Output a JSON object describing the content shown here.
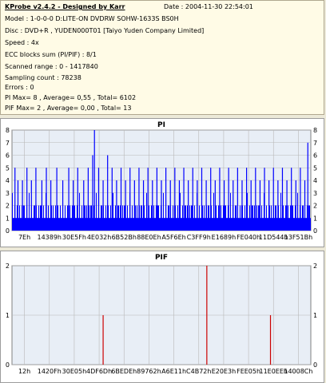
{
  "header": {
    "title": "KProbe v2.4.2 - Designed by Karr",
    "date": "Date : 2004-11-30 22:54:01",
    "lines": [
      "Model : 1-0-0-0 D:LITE-ON DVDRW SOHW-1633S BS0H",
      "Disc : DVD+R , YUDEN000T01 [Taiyo Yuden Company Limited]",
      "Speed : 4x",
      "ECC blocks sum (PI/PIF) : 8/1",
      "Scanned range : 0 - 1417840",
      "Sampling count : 78238",
      "Errors : 0",
      "PI Max= 8 , Average= 0,55 , Total= 6102",
      "PIF Max= 2 , Average= 0,00 , Total= 13"
    ]
  },
  "colors": {
    "pi_bar": "#0000ff",
    "pif_bar": "#cc0000",
    "plot_bg": "#e8eef6",
    "grid": "#b8b8b8"
  },
  "chart_data": [
    {
      "type": "bar",
      "title": "PI",
      "ylim": [
        0,
        8
      ],
      "yticks": [
        0,
        1,
        2,
        3,
        4,
        5,
        6,
        7,
        8
      ],
      "xticks": [
        "7Eh",
        "14389h",
        "30E5Fh",
        "4E032h",
        "6B52Bh",
        "88E0Eh",
        "A5F6Eh",
        "C3FF9h",
        "E1689h",
        "FE040h",
        "11D544h",
        "13F51Bh"
      ],
      "grid": true,
      "spikes": [
        {
          "x": 0.01,
          "v": 5
        },
        {
          "x": 0.02,
          "v": 4
        },
        {
          "x": 0.035,
          "v": 4
        },
        {
          "x": 0.05,
          "v": 5
        },
        {
          "x": 0.065,
          "v": 4
        },
        {
          "x": 0.08,
          "v": 5
        },
        {
          "x": 0.1,
          "v": 4
        },
        {
          "x": 0.115,
          "v": 5
        },
        {
          "x": 0.13,
          "v": 4
        },
        {
          "x": 0.15,
          "v": 5
        },
        {
          "x": 0.17,
          "v": 4
        },
        {
          "x": 0.19,
          "v": 5
        },
        {
          "x": 0.205,
          "v": 4
        },
        {
          "x": 0.22,
          "v": 5
        },
        {
          "x": 0.24,
          "v": 4
        },
        {
          "x": 0.255,
          "v": 5
        },
        {
          "x": 0.27,
          "v": 6
        },
        {
          "x": 0.276,
          "v": 8
        },
        {
          "x": 0.29,
          "v": 5
        },
        {
          "x": 0.305,
          "v": 4
        },
        {
          "x": 0.32,
          "v": 6
        },
        {
          "x": 0.335,
          "v": 5
        },
        {
          "x": 0.35,
          "v": 4
        },
        {
          "x": 0.365,
          "v": 5
        },
        {
          "x": 0.38,
          "v": 4
        },
        {
          "x": 0.395,
          "v": 5
        },
        {
          "x": 0.41,
          "v": 4
        },
        {
          "x": 0.425,
          "v": 5
        },
        {
          "x": 0.44,
          "v": 4
        },
        {
          "x": 0.455,
          "v": 5
        },
        {
          "x": 0.47,
          "v": 4
        },
        {
          "x": 0.485,
          "v": 5
        },
        {
          "x": 0.5,
          "v": 4
        },
        {
          "x": 0.515,
          "v": 5
        },
        {
          "x": 0.53,
          "v": 4
        },
        {
          "x": 0.545,
          "v": 5
        },
        {
          "x": 0.56,
          "v": 4
        },
        {
          "x": 0.575,
          "v": 5
        },
        {
          "x": 0.59,
          "v": 4
        },
        {
          "x": 0.605,
          "v": 5
        },
        {
          "x": 0.62,
          "v": 4
        },
        {
          "x": 0.635,
          "v": 5
        },
        {
          "x": 0.65,
          "v": 4
        },
        {
          "x": 0.665,
          "v": 5
        },
        {
          "x": 0.68,
          "v": 4
        },
        {
          "x": 0.695,
          "v": 5
        },
        {
          "x": 0.71,
          "v": 4
        },
        {
          "x": 0.725,
          "v": 5
        },
        {
          "x": 0.74,
          "v": 4
        },
        {
          "x": 0.755,
          "v": 5
        },
        {
          "x": 0.77,
          "v": 4
        },
        {
          "x": 0.785,
          "v": 5
        },
        {
          "x": 0.8,
          "v": 4
        },
        {
          "x": 0.815,
          "v": 5
        },
        {
          "x": 0.83,
          "v": 4
        },
        {
          "x": 0.845,
          "v": 5
        },
        {
          "x": 0.86,
          "v": 4
        },
        {
          "x": 0.875,
          "v": 5
        },
        {
          "x": 0.89,
          "v": 4
        },
        {
          "x": 0.905,
          "v": 5
        },
        {
          "x": 0.92,
          "v": 4
        },
        {
          "x": 0.935,
          "v": 5
        },
        {
          "x": 0.95,
          "v": 4
        },
        {
          "x": 0.965,
          "v": 5
        },
        {
          "x": 0.98,
          "v": 4
        },
        {
          "x": 0.99,
          "v": 7
        }
      ]
    },
    {
      "type": "bar",
      "title": "PIF",
      "ylim": [
        0,
        2
      ],
      "yticks": [
        0,
        1,
        2
      ],
      "xticks": [
        "12h",
        "1420Fh",
        "30E05h",
        "4DF6Dh",
        "6BEDEh",
        "89762h",
        "A6E11h",
        "C4B72h",
        "E20E3h",
        "FEE05h",
        "11E0EEh",
        "14008Ch"
      ],
      "grid": true,
      "spikes": [
        {
          "x": 0.305,
          "v": 1
        },
        {
          "x": 0.652,
          "v": 2
        },
        {
          "x": 0.865,
          "v": 1
        }
      ]
    }
  ]
}
